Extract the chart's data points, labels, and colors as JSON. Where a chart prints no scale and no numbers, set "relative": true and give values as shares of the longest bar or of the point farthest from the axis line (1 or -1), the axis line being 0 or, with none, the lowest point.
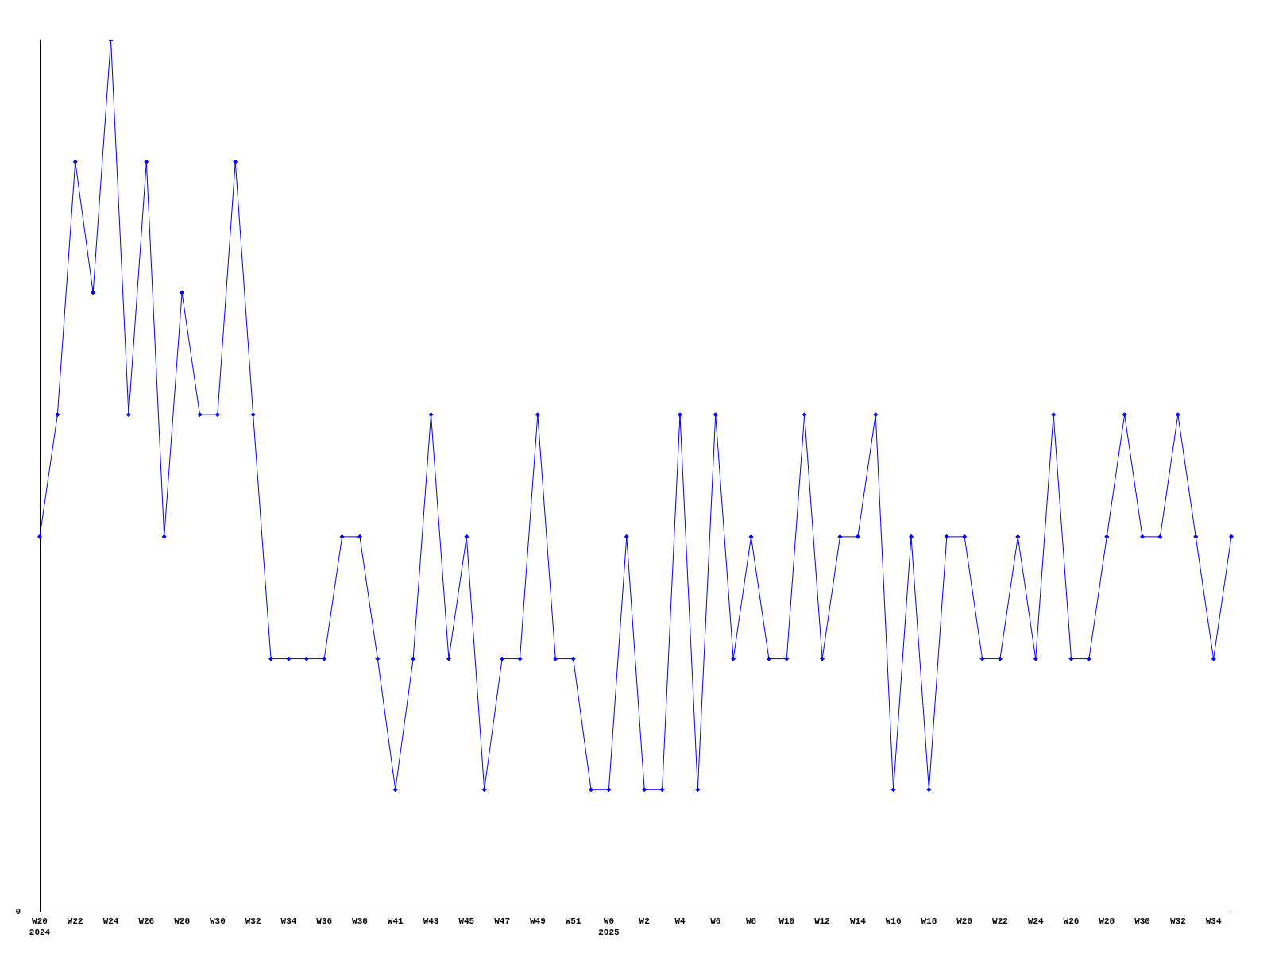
{
  "chart_data": {
    "type": "line",
    "relative": true,
    "color": "#0000ff",
    "marker": "diamond",
    "legend": false,
    "grid": false,
    "categories": [
      "W20\n2024",
      null,
      "W22",
      null,
      "W24",
      null,
      "W26",
      null,
      "W28",
      null,
      "W30",
      null,
      "W32",
      null,
      "W34",
      null,
      "W36",
      null,
      "W38",
      null,
      "W41",
      null,
      "W43",
      null,
      "W45",
      null,
      "W47",
      null,
      "W49",
      null,
      "W51",
      null,
      "W0\n2025",
      null,
      "W2",
      null,
      "W4",
      null,
      "W6",
      null,
      "W8",
      null,
      "W10",
      null,
      "W12",
      null,
      "W14",
      null,
      "W16",
      null,
      "W18",
      null,
      "W20",
      null,
      "W22",
      null,
      "W24",
      null,
      "W26",
      null,
      "W28",
      null,
      "W30",
      null,
      "W32",
      null,
      "W34",
      null
    ],
    "values": [
      0.43,
      0.57,
      0.86,
      0.71,
      1,
      0.57,
      0.86,
      0.43,
      0.71,
      0.57,
      0.57,
      0.86,
      0.57,
      0.29,
      0.29,
      0.29,
      0.29,
      0.43,
      0.43,
      0.29,
      0.14,
      0.29,
      0.57,
      0.29,
      0.43,
      0.14,
      0.29,
      0.29,
      0.57,
      0.29,
      0.29,
      0.14,
      0.14,
      0.43,
      0.14,
      0.14,
      0.57,
      0.14,
      0.57,
      0.29,
      0.43,
      0.29,
      0.29,
      0.57,
      0.29,
      0.43,
      0.43,
      0.57,
      0.14,
      0.43,
      0.14,
      0.43,
      0.43,
      0.29,
      0.29,
      0.43,
      0.29,
      0.57,
      0.29,
      0.29,
      0.43,
      0.57,
      0.43,
      0.43,
      0.57,
      0.43,
      0.29,
      0.43
    ],
    "annotations": [
      "0"
    ]
  }
}
